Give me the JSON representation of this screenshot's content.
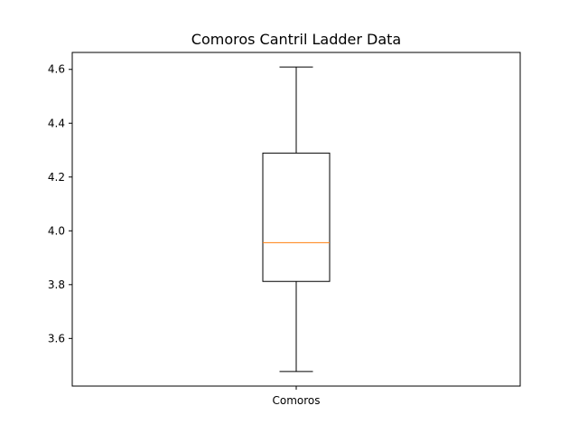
{
  "chart_data": {
    "type": "boxplot",
    "title": "Comoros Cantril Ladder Data",
    "xlabel": "",
    "ylabel": "",
    "categories": [
      "Comoros"
    ],
    "boxes": [
      {
        "category": "Comoros",
        "whisker_low": 3.477,
        "q1": 3.812,
        "median": 3.956,
        "q3": 4.289,
        "whisker_high": 4.609
      }
    ],
    "ylim": [
      3.423,
      4.663
    ],
    "yticks": [
      3.6,
      3.8,
      4.0,
      4.2,
      4.4,
      4.6
    ],
    "ytick_labels": [
      "3.6",
      "3.8",
      "4.0",
      "4.2",
      "4.4",
      "4.6"
    ],
    "grid": false,
    "colors": {
      "box": "#000000",
      "median": "#ff7f0e",
      "whisker": "#000000"
    }
  }
}
